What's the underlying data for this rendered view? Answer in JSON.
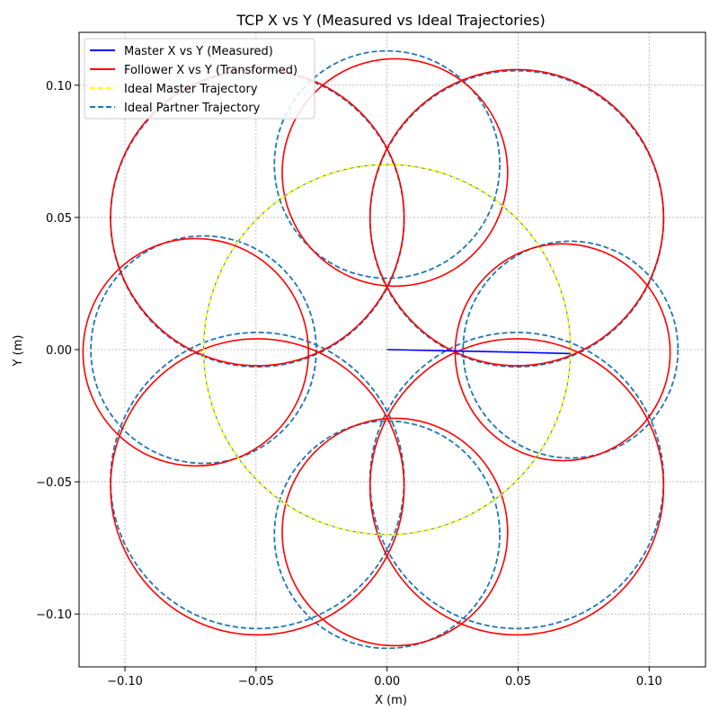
{
  "chart_data": {
    "type": "line",
    "title": "TCP X vs Y (Measured vs Ideal Trajectories)",
    "xlabel": "X (m)",
    "ylabel": "Y (m)",
    "xlim": [
      -0.1175,
      0.1215
    ],
    "ylim": [
      -0.12,
      0.12
    ],
    "xticks": [
      -0.1,
      -0.05,
      0.0,
      0.05,
      0.1
    ],
    "xtick_labels": [
      "−0.10",
      "−0.05",
      "0.00",
      "0.05",
      "0.10"
    ],
    "yticks": [
      -0.1,
      -0.05,
      0.0,
      0.05,
      0.1
    ],
    "ytick_labels": [
      "−0.10",
      "−0.05",
      "0.00",
      "0.05",
      "0.10"
    ],
    "grid": true,
    "legend_position": "top-left",
    "ideal_master_circle": {
      "center": [
        0.0,
        0.0
      ],
      "radius": 0.07
    },
    "orbit_radius": 0.07,
    "partner_radii": [
      0.041,
      0.056,
      0.043,
      0.056,
      0.043,
      0.056,
      0.043,
      0.056
    ],
    "partner_angles_deg": [
      0,
      45,
      90,
      135,
      180,
      225,
      270,
      315
    ],
    "follower_offset": [
      -0.003,
      -0.001
    ],
    "series": [
      {
        "name": "Master X vs Y (Measured)",
        "color": "#0000ff",
        "style": "solid",
        "x": [
          0.0,
          0.05,
          0.07
        ],
        "y": [
          0.0,
          -0.001,
          -0.0015
        ]
      },
      {
        "name": "Follower X vs Y (Transformed)",
        "color": "#ff0000",
        "style": "solid"
      },
      {
        "name": "Ideal Master Trajectory",
        "color": "#ffff00",
        "style": "dashed"
      },
      {
        "name": "Ideal Partner Trajectory",
        "color": "#1f77b4",
        "style": "dashed"
      }
    ]
  }
}
